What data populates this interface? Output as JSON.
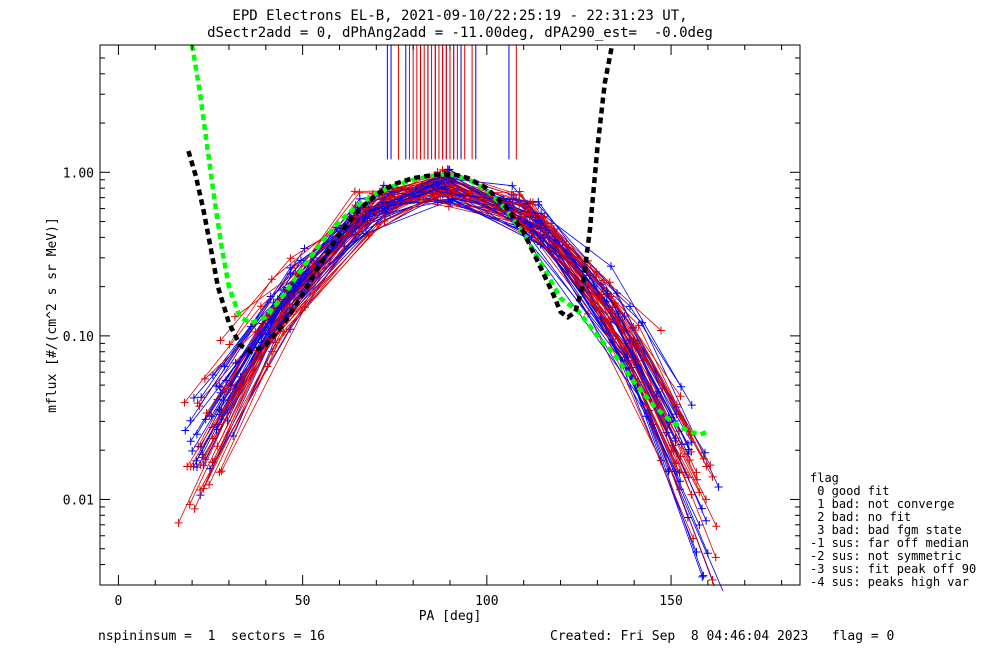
{
  "title_line1": "EPD Electrons EL-B, 2021-09-10/22:25:19 - 22:31:23 UT,",
  "title_line2": "dSectr2add = 0, dPhAng2add = -11.00deg, dPA290_est=  -0.0deg",
  "footer_left": "nspininsum =  1  sectors = 16",
  "footer_right": "Created: Fri Sep  8 04:46:04 2023   flag = 0",
  "legend": {
    "title": "flag",
    "entries": [
      " 0 good fit",
      " 1 bad: not converge",
      " 2 bad: no fit",
      " 3 bad: bad fgm state",
      "-1 sus: far off median",
      "-2 sus: not symmetric",
      "-3 sus: fit peak off 90",
      "-4 sus: peaks high var"
    ]
  },
  "colors": {
    "red": "#e00000",
    "blue": "#0000ee",
    "green": "#00ff00",
    "black": "#000000",
    "purple": "#800080"
  },
  "chart_data": {
    "type": "line",
    "xlabel": "PA [deg]",
    "ylabel": "mflux [#/(cm^2 s sr MeV)]",
    "xlim": [
      -5,
      185
    ],
    "ylim": [
      0.003,
      6.0
    ],
    "yscale": "log",
    "xticks": [
      0,
      50,
      100,
      150
    ],
    "xtick_labels": [
      "0",
      "50",
      "100",
      "150"
    ],
    "yticks": [
      0.01,
      0.1,
      1.0
    ],
    "ytick_labels": [
      "0.01",
      "0.10",
      "1.00"
    ],
    "green_fit": {
      "x": [
        20,
        22,
        24,
        26,
        28,
        30,
        33,
        36,
        40,
        45,
        50,
        55,
        60,
        65,
        70,
        75,
        80,
        85,
        88,
        90,
        92,
        95,
        100,
        105,
        110,
        115,
        120,
        125,
        130,
        135,
        140,
        145,
        150,
        155,
        158,
        160
      ],
      "y": [
        6.0,
        3.2,
        1.5,
        0.7,
        0.35,
        0.2,
        0.13,
        0.12,
        0.13,
        0.18,
        0.26,
        0.37,
        0.5,
        0.63,
        0.74,
        0.83,
        0.9,
        0.95,
        0.97,
        0.97,
        0.95,
        0.9,
        0.78,
        0.6,
        0.42,
        0.27,
        0.17,
        0.14,
        0.1,
        0.075,
        0.052,
        0.038,
        0.03,
        0.026,
        0.025,
        0.026
      ]
    },
    "black_fit": {
      "x": [
        19,
        21,
        23,
        25,
        27,
        30,
        33,
        36,
        40,
        45,
        50,
        55,
        60,
        65,
        70,
        75,
        80,
        85,
        88,
        90,
        92,
        95,
        100,
        105,
        110,
        115,
        118,
        120,
        122,
        124,
        126,
        128,
        130,
        132,
        134
      ],
      "y": [
        1.35,
        0.95,
        0.6,
        0.35,
        0.2,
        0.12,
        0.088,
        0.08,
        0.088,
        0.12,
        0.18,
        0.28,
        0.42,
        0.58,
        0.73,
        0.85,
        0.92,
        0.96,
        0.97,
        0.97,
        0.96,
        0.92,
        0.8,
        0.62,
        0.43,
        0.25,
        0.18,
        0.14,
        0.13,
        0.14,
        0.2,
        0.45,
        1.4,
        3.5,
        6.0
      ]
    },
    "red_vlines": [
      76,
      79,
      80,
      81,
      82,
      83,
      84,
      85,
      86,
      87,
      88,
      89,
      90,
      91,
      92,
      94,
      96,
      108
    ],
    "blue_vlines": [
      73,
      74,
      78,
      82,
      84,
      86,
      88,
      89,
      90,
      91,
      93,
      97,
      106
    ]
  }
}
